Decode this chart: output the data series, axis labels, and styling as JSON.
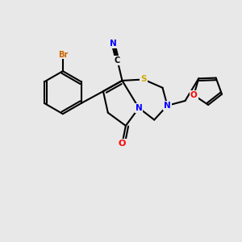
{
  "background_color": "#e8e8e8",
  "atom_colors": {
    "C": "#000000",
    "N": "#0000ff",
    "O": "#ff0000",
    "S": "#ccaa00",
    "Br": "#cc6600"
  },
  "bond_color": "#000000",
  "bond_width": 1.5,
  "figsize": [
    3.0,
    3.0
  ],
  "dpi": 100
}
